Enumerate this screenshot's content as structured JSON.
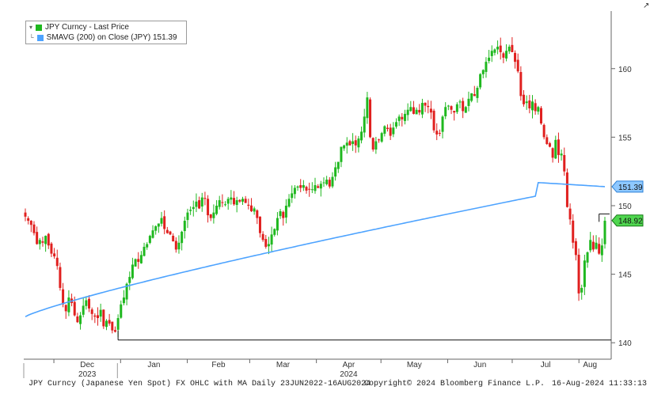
{
  "chart_data": {
    "type": "ohlc",
    "title": "",
    "legend": {
      "placement": "top-left",
      "entries": [
        {
          "label": "JPY Curncy - Last Price",
          "color": "#1fb81f"
        },
        {
          "label": "SMAVG (200)  on Close (JPY) 151.39",
          "color": "#4da3ff"
        }
      ]
    },
    "xaxis": {
      "month_labels": [
        "Dec",
        "Jan",
        "Feb",
        "Mar",
        "Apr",
        "May",
        "Jun",
        "Jul",
        "Aug"
      ],
      "year_labels": [
        "2023",
        "2024"
      ],
      "range": [
        "2023-11-17",
        "2024-08-16"
      ]
    },
    "yaxis": {
      "ticks": [
        140,
        145,
        150,
        155,
        160
      ],
      "ylim": [
        138.8,
        164.2
      ],
      "side": "right"
    },
    "last_price": 148.92,
    "last_price_label": "148.92",
    "ma_last": 151.39,
    "ma_last_label": "151.39",
    "support_level": 140.2,
    "resistance_marker": 149.4,
    "colors": {
      "up": "#1fb81f",
      "down": "#e0201f",
      "ma": "#4da3ff"
    },
    "price_closes": [
      149.2,
      148.9,
      148.6,
      148.0,
      147.2,
      147.5,
      147.3,
      147.8,
      147.1,
      146.5,
      146.3,
      145.6,
      144.0,
      142.8,
      142.3,
      143.3,
      142.9,
      142.0,
      141.5,
      142.0,
      142.7,
      143.1,
      142.5,
      142.1,
      141.9,
      141.8,
      142.4,
      141.2,
      141.6,
      141.4,
      140.9,
      140.8,
      141.8,
      142.8,
      143.3,
      144.3,
      144.8,
      145.7,
      146.1,
      145.9,
      146.4,
      147.0,
      147.2,
      147.8,
      148.2,
      148.5,
      148.7,
      149.1,
      148.3,
      148.0,
      147.9,
      147.4,
      146.8,
      147.3,
      148.1,
      148.9,
      149.5,
      149.7,
      149.9,
      150.3,
      149.8,
      150.6,
      150.5,
      149.3,
      149.1,
      149.5,
      150.0,
      150.4,
      150.2,
      150.1,
      150.5,
      150.6,
      150.1,
      150.4,
      150.3,
      150.5,
      150.2,
      150.0,
      149.6,
      149.8,
      149.1,
      148.0,
      147.5,
      147.0,
      147.2,
      147.9,
      148.3,
      149.1,
      149.6,
      149.1,
      150.0,
      150.5,
      150.9,
      151.3,
      151.4,
      151.3,
      151.5,
      151.1,
      151.2,
      151.2,
      151.5,
      151.3,
      151.6,
      151.7,
      151.9,
      151.4,
      152.1,
      152.8,
      153.2,
      154.3,
      154.4,
      154.6,
      154.4,
      154.7,
      154.4,
      154.9,
      155.4,
      156.5,
      157.9,
      155.0,
      154.1,
      154.7,
      154.8,
      155.3,
      155.8,
      155.6,
      155.1,
      155.7,
      156.1,
      156.5,
      156.3,
      156.7,
      157.0,
      157.2,
      156.7,
      157.0,
      156.8,
      157.5,
      157.3,
      157.2,
      156.8,
      155.5,
      155.2,
      155.3,
      156.5,
      157.2,
      157.3,
      157.0,
      156.8,
      157.4,
      157.6,
      156.9,
      157.2,
      157.8,
      158.2,
      158.0,
      158.6,
      159.6,
      159.9,
      160.5,
      160.8,
      161.3,
      161.4,
      161.6,
      161.2,
      160.8,
      161.3,
      161.6,
      161.2,
      160.5,
      159.8,
      158.0,
      157.4,
      157.6,
      157.1,
      157.6,
      156.9,
      157.2,
      156.0,
      155.0,
      154.5,
      154.3,
      153.5,
      154.8,
      153.7,
      153.8,
      152.5,
      149.9,
      149.0,
      147.3,
      146.4,
      143.6,
      144.0,
      146.0,
      146.6,
      147.5,
      146.8,
      147.3,
      146.5,
      147.1,
      148.9
    ]
  },
  "footer": {
    "left": "JPY Curncy (Japanese Yen Spot) FX OHLC with MA  Daily 23JUN2022-16AUG2024",
    "center": "Copyright© 2024 Bloomberg Finance L.P.",
    "right": "16-Aug-2024 11:33:13"
  },
  "corner_glyph": "↗"
}
